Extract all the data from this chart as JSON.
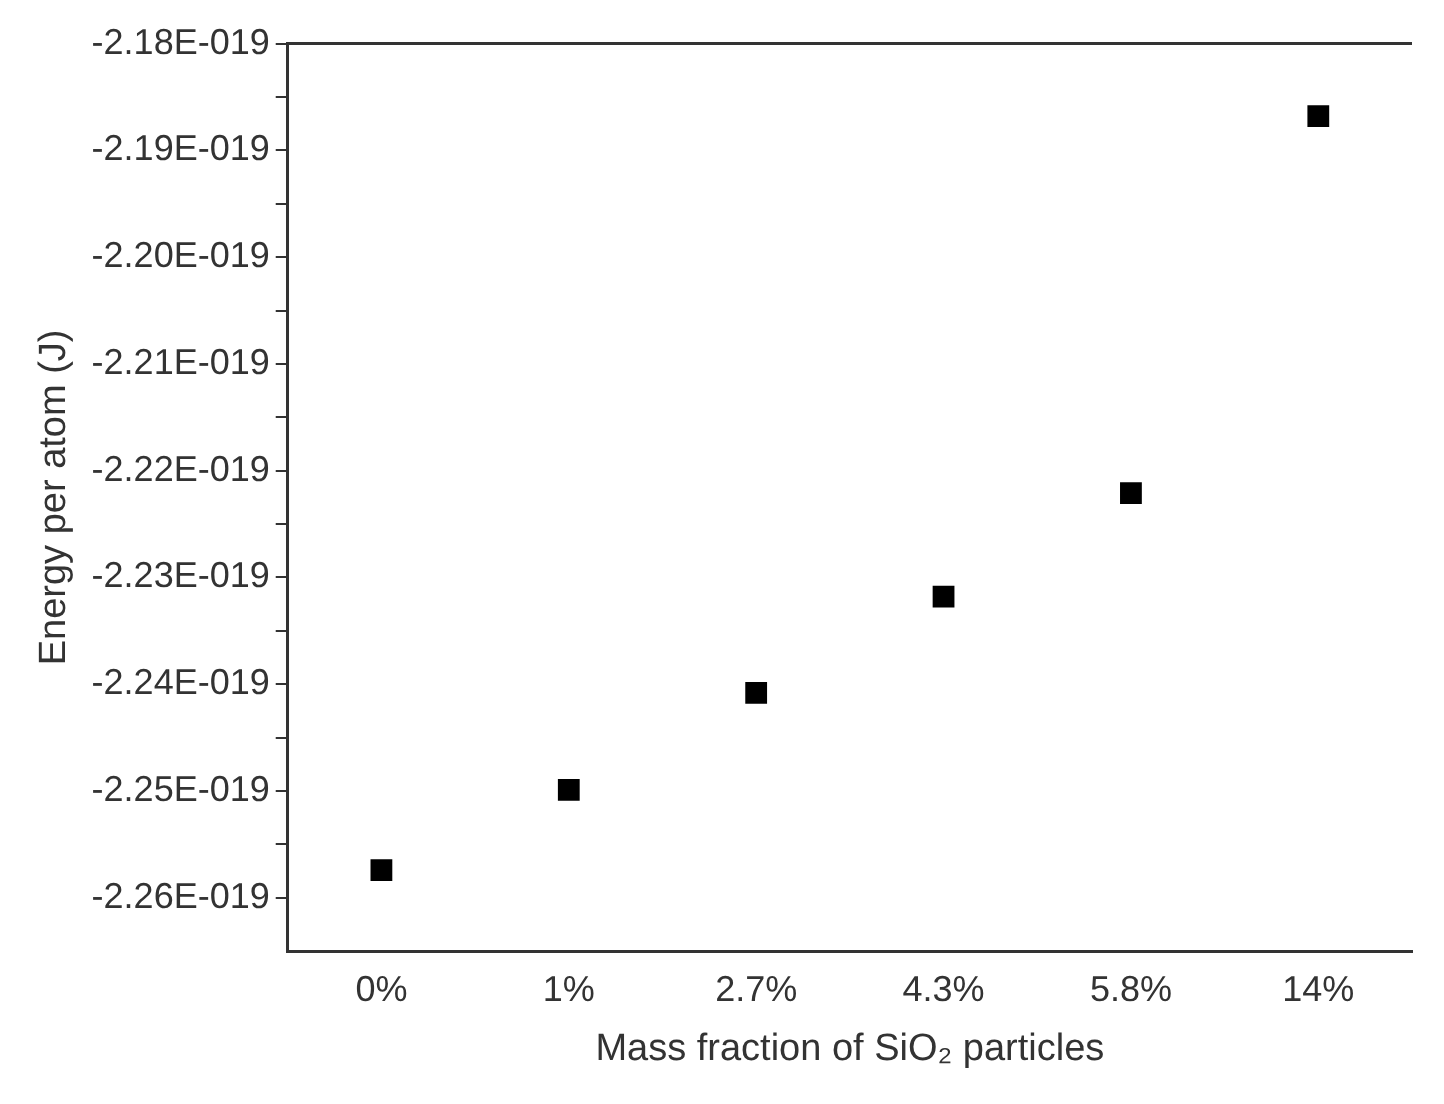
{
  "chart_data": {
    "type": "scatter",
    "xlabel": "Mass fraction of SiO₂ particles",
    "ylabel": "Energy per atom (J)",
    "categories": [
      "0%",
      "1%",
      "2.7%",
      "4.3%",
      "5.8%",
      "14%"
    ],
    "series": [
      {
        "color": "#000000",
        "values": [
          -2.2574e-19,
          -2.2499e-19,
          -2.2408e-19,
          -2.2318e-19,
          -2.2221e-19,
          -2.1868e-19
        ]
      }
    ],
    "marker": "square",
    "grid": false,
    "legend": false,
    "ylim": [
      -2.265e-19,
      -2.18e-19
    ],
    "yticks": [
      {
        "value": -2.26e-19,
        "label": "-2.26E-019"
      },
      {
        "value": -2.255e-19,
        "label": null
      },
      {
        "value": -2.25e-19,
        "label": "-2.25E-019"
      },
      {
        "value": -2.245e-19,
        "label": null
      },
      {
        "value": -2.24e-19,
        "label": "-2.24E-019"
      },
      {
        "value": -2.235e-19,
        "label": null
      },
      {
        "value": -2.23e-19,
        "label": "-2.23E-019"
      },
      {
        "value": -2.225e-19,
        "label": null
      },
      {
        "value": -2.22e-19,
        "label": "-2.22E-019"
      },
      {
        "value": -2.215e-19,
        "label": null
      },
      {
        "value": -2.21e-19,
        "label": "-2.21E-019"
      },
      {
        "value": -2.205e-19,
        "label": null
      },
      {
        "value": -2.2e-19,
        "label": "-2.20E-019"
      },
      {
        "value": -2.195e-19,
        "label": null
      },
      {
        "value": -2.19e-19,
        "label": "-2.19E-019"
      },
      {
        "value": -2.185e-19,
        "label": null
      },
      {
        "value": -2.18e-19,
        "label": "-2.18E-019"
      }
    ]
  }
}
